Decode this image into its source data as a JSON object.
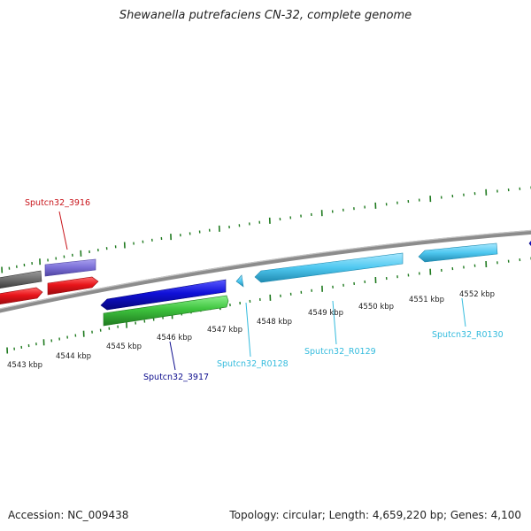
{
  "title": "Shewanella putrefaciens CN-32, complete genome",
  "footer": {
    "accession": "Accession: NC_009438",
    "summary": "Topology: circular; Length: 4,659,220 bp; Genes: 4,100"
  },
  "scale_labels": [
    "4543 kbp",
    "4544 kbp",
    "4545 kbp",
    "4546 kbp",
    "4547 kbp",
    "4548 kbp",
    "4549 kbp",
    "4550 kbp",
    "4551 kbp",
    "4552 kbp"
  ],
  "gene_labels": {
    "gene_3916": "Sputcn32_3916",
    "gene_3917": "Sputcn32_3917",
    "r0128": "Sputcn32_R0128",
    "r0129": "Sputcn32_R0129",
    "r0130": "Sputcn32_R0130"
  },
  "colors": {
    "backbone": "#8c8c8c",
    "ticks": "#1f7a1f",
    "gene_red": "#e8141a",
    "gene_purple": "#7b6fd6",
    "gene_grey": "#6e6e6e",
    "gene_blue": "#1010d8",
    "gene_green": "#3ec43e",
    "gene_cyan": "#4fc8f0",
    "label_red": "#c8141a",
    "label_navy": "#0a0a8c",
    "label_cyan": "#33bbdd"
  }
}
